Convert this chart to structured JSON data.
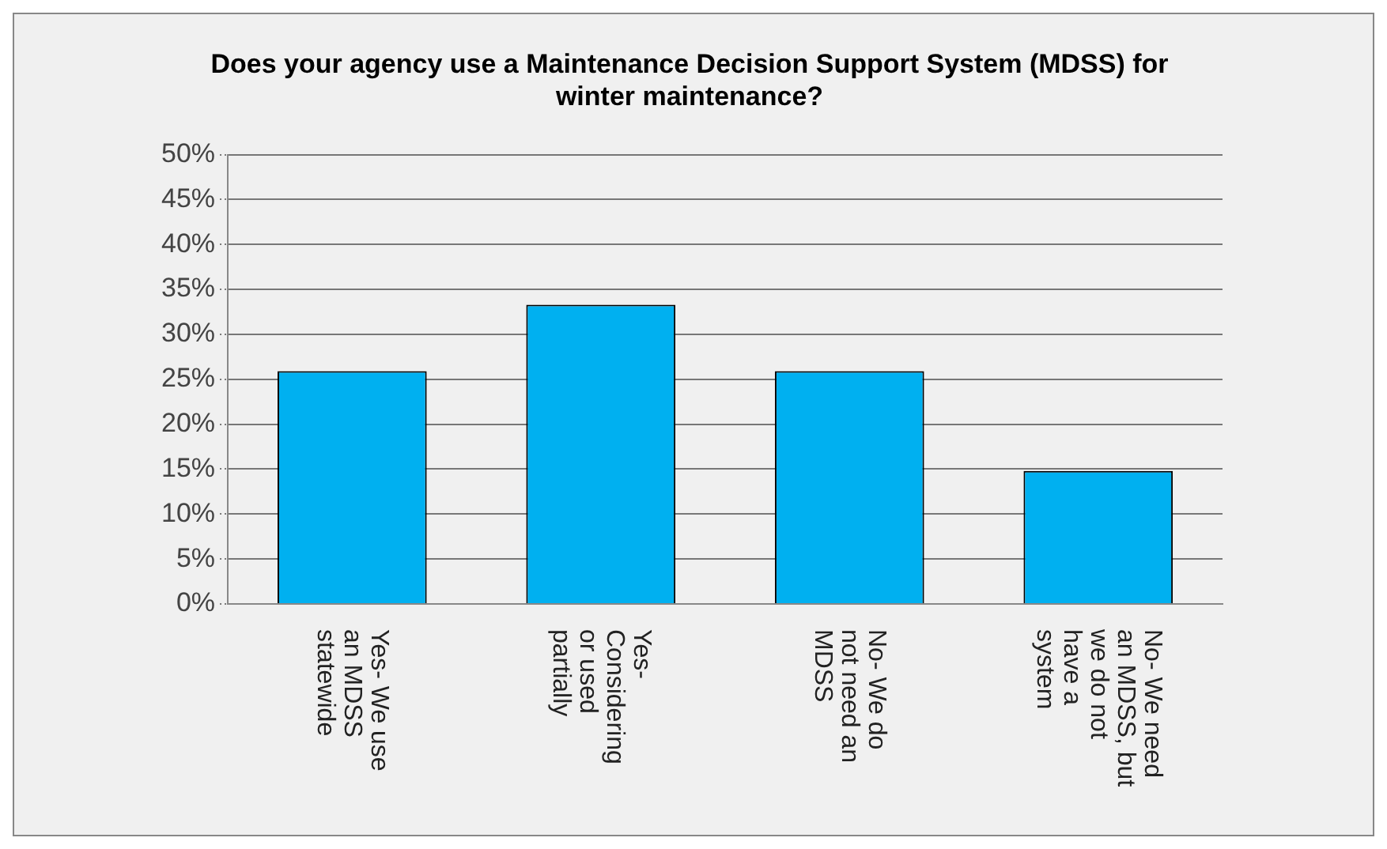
{
  "chart_data": {
    "type": "bar",
    "title": "Does your agency use a Maintenance Decision Support System (MDSS) for winter maintenance?",
    "categories": [
      "Yes- We use an MDSS statewide",
      "Yes- Considering or used partially",
      "No- We do not need an MDSS",
      "No- We need an MDSS, but we do not have a system"
    ],
    "values": [
      25.9,
      33.3,
      25.9,
      14.8
    ],
    "color": "#00b0f0",
    "ylim": [
      0,
      50
    ],
    "yticks": [
      {
        "value": 0,
        "label": "0%"
      },
      {
        "value": 5,
        "label": "5%"
      },
      {
        "value": 10,
        "label": "10%"
      },
      {
        "value": 15,
        "label": "15%"
      },
      {
        "value": 20,
        "label": "20%"
      },
      {
        "value": 25,
        "label": "25%"
      },
      {
        "value": 30,
        "label": "30%"
      },
      {
        "value": 35,
        "label": "35%"
      },
      {
        "value": 40,
        "label": "40%"
      },
      {
        "value": 45,
        "label": "45%"
      },
      {
        "value": 50,
        "label": "50%"
      }
    ],
    "grid": "y"
  }
}
